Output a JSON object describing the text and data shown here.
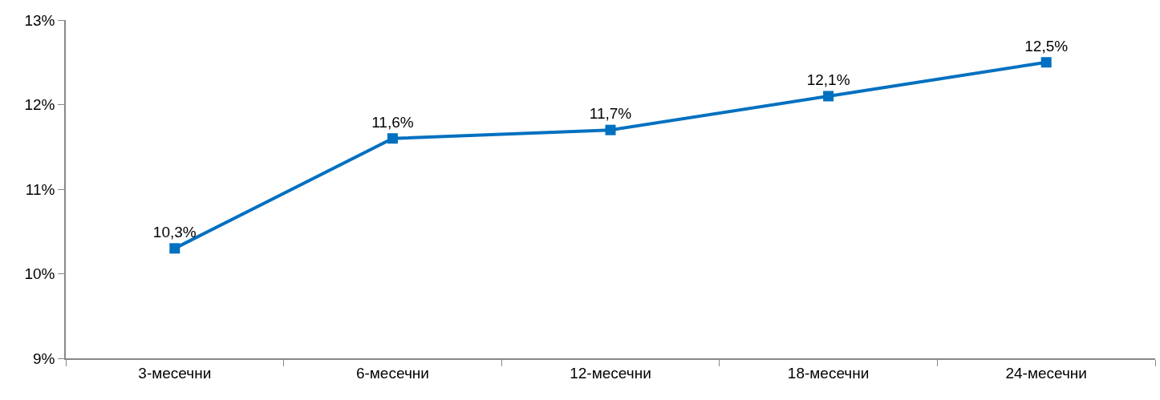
{
  "chart_data": {
    "type": "line",
    "categories": [
      "3-месечни",
      "6-месечни",
      "12-месечни",
      "18-месечни",
      "24-месечни"
    ],
    "series": [
      {
        "color": "#0070c0",
        "values": [
          10.3,
          11.6,
          11.7,
          12.1,
          12.5
        ],
        "value_labels": [
          "10,3%",
          "11,6%",
          "11,7%",
          "12,1%",
          "12,5%"
        ]
      }
    ],
    "ylim": [
      9,
      13
    ],
    "yticks": [
      {
        "value": 9,
        "label": "9%"
      },
      {
        "value": 10,
        "label": "10%"
      },
      {
        "value": 11,
        "label": "11%"
      },
      {
        "value": 12,
        "label": "12%"
      },
      {
        "value": 13,
        "label": "13%"
      }
    ],
    "grid": false,
    "marker": "square",
    "line_style": "solid"
  }
}
